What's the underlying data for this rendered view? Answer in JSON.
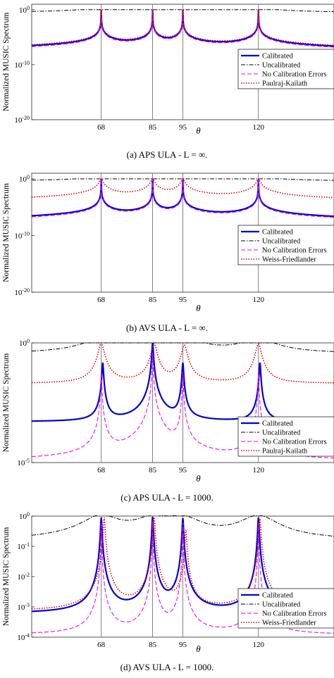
{
  "chart_data": [
    {
      "type": "line",
      "caption": "(a) APS ULA - L = ∞.",
      "ylabel": "Normalized MUSIC Spectrum",
      "xlabel": "θ",
      "log_y": true,
      "ylim": [
        1e-20,
        10
      ],
      "xlim": [
        45,
        145
      ],
      "ytick_labels": [
        "10^0",
        "10^-10",
        "10^-20"
      ],
      "ytick_values": [
        1,
        1e-10,
        1e-20
      ],
      "xtick_labels": [
        "68",
        "85",
        "95",
        "120"
      ],
      "xtick_values": [
        68,
        85,
        95,
        120
      ],
      "legend_position": "right",
      "series": [
        {
          "name": "Calibrated",
          "color": "#0000dd",
          "style": "solid",
          "width": 2.2,
          "baseline": 2e-18,
          "peaks": [
            68,
            85,
            95,
            120
          ],
          "peak_value": 1,
          "peak_gamma": 0.01,
          "model": "add"
        },
        {
          "name": "Uncalibrated",
          "color": "#000000",
          "style": "dashdot",
          "width": 1,
          "baseline": 0.3,
          "peaks": [
            68,
            85,
            95,
            120
          ],
          "peak_value": 1,
          "peak_gamma": 8,
          "model": "add"
        },
        {
          "name": "No Calibration Errors",
          "color": "#ee00ee",
          "style": "dashed",
          "width": 1.1,
          "baseline": 1.2e-18,
          "peaks": [
            68,
            85,
            95,
            120
          ],
          "peak_value": 1,
          "peak_gamma": 0.008,
          "model": "add"
        },
        {
          "name": "Paulraj-Kailath",
          "color": "#dd0000",
          "style": "dotted",
          "width": 1.6,
          "baseline": 3e-18,
          "peaks": [
            68,
            85,
            95,
            120
          ],
          "peak_value": 1,
          "peak_gamma": 0.012,
          "model": "add"
        }
      ]
    },
    {
      "type": "line",
      "caption": "(b) AVS ULA - L = ∞.",
      "ylabel": "Normalized MUSIC Spectrum",
      "xlabel": "θ",
      "log_y": true,
      "ylim": [
        1e-20,
        10
      ],
      "xlim": [
        45,
        145
      ],
      "ytick_labels": [
        "10^0",
        "10^-10",
        "10^-20"
      ],
      "ytick_values": [
        1,
        1e-10,
        1e-20
      ],
      "xtick_labels": [
        "68",
        "85",
        "95",
        "120"
      ],
      "xtick_values": [
        68,
        85,
        95,
        120
      ],
      "legend_position": "right",
      "series": [
        {
          "name": "Calibrated",
          "color": "#0000dd",
          "style": "solid",
          "width": 2.2,
          "baseline": 2e-18,
          "peaks": [
            68,
            85,
            95,
            120
          ],
          "peak_value": 1,
          "peak_gamma": 0.01,
          "model": "add"
        },
        {
          "name": "Uncalibrated",
          "color": "#000000",
          "style": "dashdot",
          "width": 1,
          "baseline": 0.4,
          "peaks": [
            68,
            85,
            95,
            120
          ],
          "peak_value": 1,
          "peak_gamma": 8,
          "model": "add"
        },
        {
          "name": "No Calibration Errors",
          "color": "#ee00ee",
          "style": "dashed",
          "width": 1.1,
          "baseline": 1.2e-18,
          "peaks": [
            68,
            85,
            95,
            120
          ],
          "peak_value": 1,
          "peak_gamma": 0.008,
          "model": "add"
        },
        {
          "name": "Weiss-Friedlander",
          "color": "#dd0000",
          "style": "dotted",
          "width": 1.6,
          "baseline": 0.0001,
          "peaks": [
            68,
            85,
            95,
            120
          ],
          "peak_value": 1,
          "peak_gamma": 0.4,
          "model": "add"
        }
      ]
    },
    {
      "type": "line",
      "caption": "(c) APS ULA - L = 1000.",
      "ylabel": "Normalized MUSIC Spectrum",
      "xlabel": "θ",
      "log_y": true,
      "ylim": [
        1e-05,
        1
      ],
      "xlim": [
        45,
        145
      ],
      "ytick_labels": [
        "10^0",
        "10^-5"
      ],
      "ytick_values": [
        1,
        1e-05
      ],
      "xtick_labels": [
        "68",
        "85",
        "95",
        "120"
      ],
      "xtick_values": [
        68,
        85,
        95,
        120
      ],
      "legend_position": "right",
      "series": [
        {
          "name": "Calibrated",
          "color": "#0000dd",
          "style": "solid",
          "width": 2.2,
          "baseline": 0.0005,
          "peaks": [
            68.5,
            85,
            95,
            120.5
          ],
          "peak_values": [
            0.15,
            1.0,
            0.15,
            0.15
          ],
          "peak_gamma": 0.2,
          "model": "sum"
        },
        {
          "name": "Uncalibrated",
          "color": "#000000",
          "style": "dashdot",
          "width": 1,
          "baseline": 0.35,
          "peaks": [
            68,
            85,
            95,
            120
          ],
          "peak_value": 1,
          "peak_gamma": 6,
          "model": "add"
        },
        {
          "name": "No Calibration Errors",
          "color": "#ee00ee",
          "style": "dashed",
          "width": 1.1,
          "baseline": 1.2e-05,
          "peaks": [
            68,
            85,
            95,
            120
          ],
          "peak_values": [
            0.06,
            0.4,
            0.06,
            0.06
          ],
          "peak_gamma": 0.12,
          "model": "sum"
        },
        {
          "name": "Paulraj-Kailath",
          "color": "#dd0000",
          "style": "dotted",
          "width": 1.6,
          "baseline": 0.02,
          "peaks": [
            68,
            85.5,
            95.5,
            120
          ],
          "peak_values": [
            1.0,
            0.9,
            0.8,
            0.9
          ],
          "peak_gamma": 0.8,
          "model": "sum"
        }
      ]
    },
    {
      "type": "line",
      "caption": "(d) AVS ULA - L = 1000.",
      "ylabel": "Normalized MUSIC Spectrum",
      "xlabel": "θ",
      "log_y": true,
      "ylim": [
        0.0001,
        1
      ],
      "xlim": [
        45,
        145
      ],
      "ytick_labels": [
        "10^0",
        "10^-1",
        "10^-2",
        "10^-3",
        "10^-4"
      ],
      "ytick_values": [
        1,
        0.1,
        0.01,
        0.001,
        0.0001
      ],
      "xtick_labels": [
        "68",
        "85",
        "95",
        "120"
      ],
      "xtick_values": [
        68,
        85,
        95,
        120
      ],
      "legend_position": "lower-right",
      "series": [
        {
          "name": "Calibrated",
          "color": "#0000dd",
          "style": "solid",
          "width": 2.2,
          "baseline": 0.0006,
          "peaks": [
            68,
            85,
            95,
            120
          ],
          "peak_values": [
            0.9,
            0.95,
            0.85,
            0.9
          ],
          "peak_gamma": 0.2,
          "model": "sum"
        },
        {
          "name": "Uncalibrated",
          "color": "#000000",
          "style": "dashdot",
          "width": 1,
          "baseline": 0.15,
          "peaks": [
            68,
            85,
            95,
            120
          ],
          "peak_values": [
            1.0,
            0.8,
            0.8,
            1.0
          ],
          "peak_gamma": 6,
          "model": "sum"
        },
        {
          "name": "No Calibration Errors",
          "color": "#ee00ee",
          "style": "dashed",
          "width": 1.1,
          "baseline": 0.00012,
          "peaks": [
            68,
            85,
            95,
            120
          ],
          "peak_values": [
            0.6,
            0.7,
            0.6,
            0.6
          ],
          "peak_gamma": 0.1,
          "model": "sum"
        },
        {
          "name": "Weiss-Friedlander",
          "color": "#dd0000",
          "style": "dotted",
          "width": 1.6,
          "baseline": 0.0007,
          "peaks": [
            69,
            85.5,
            96,
            120.5
          ],
          "peak_values": [
            0.9,
            0.95,
            0.35,
            0.85
          ],
          "peak_gamma": 0.25,
          "model": "sum"
        }
      ]
    }
  ]
}
